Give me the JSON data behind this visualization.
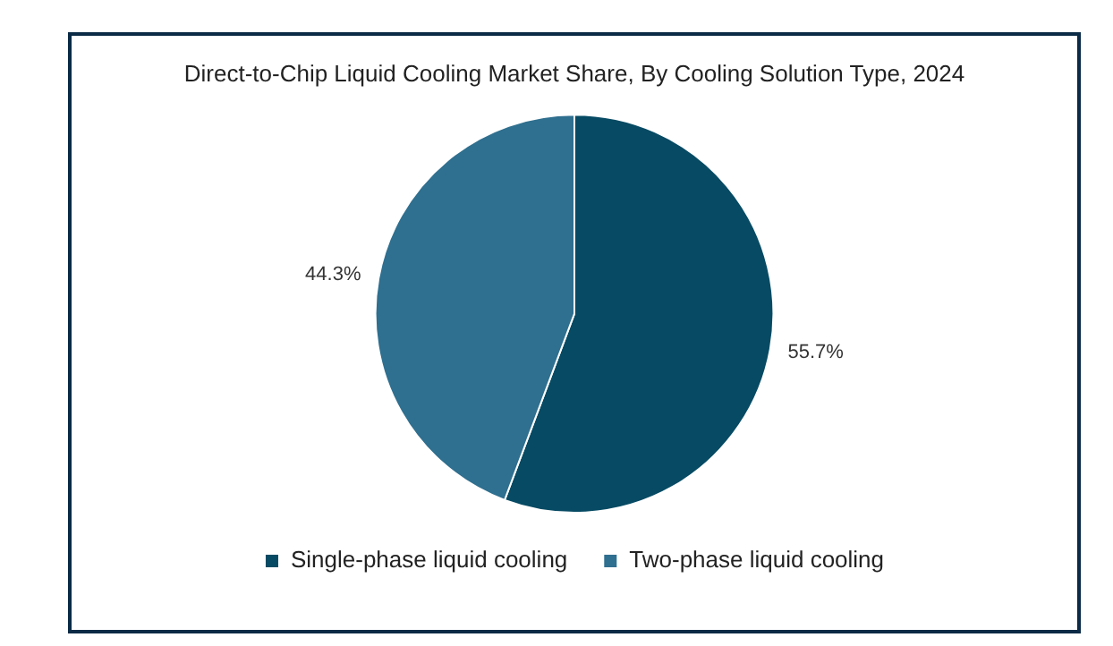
{
  "chart_data": {
    "type": "pie",
    "title": "Direct-to-Chip Liquid Cooling Market Share, By Cooling Solution Type, 2024",
    "categories": [
      "Single-phase liquid cooling",
      "Two-phase liquid cooling"
    ],
    "values": [
      55.7,
      44.3
    ],
    "colors": [
      "#064a63",
      "#2f6f8f"
    ],
    "value_labels": [
      "55.7%",
      "44.3%"
    ],
    "legend": "bottom"
  }
}
